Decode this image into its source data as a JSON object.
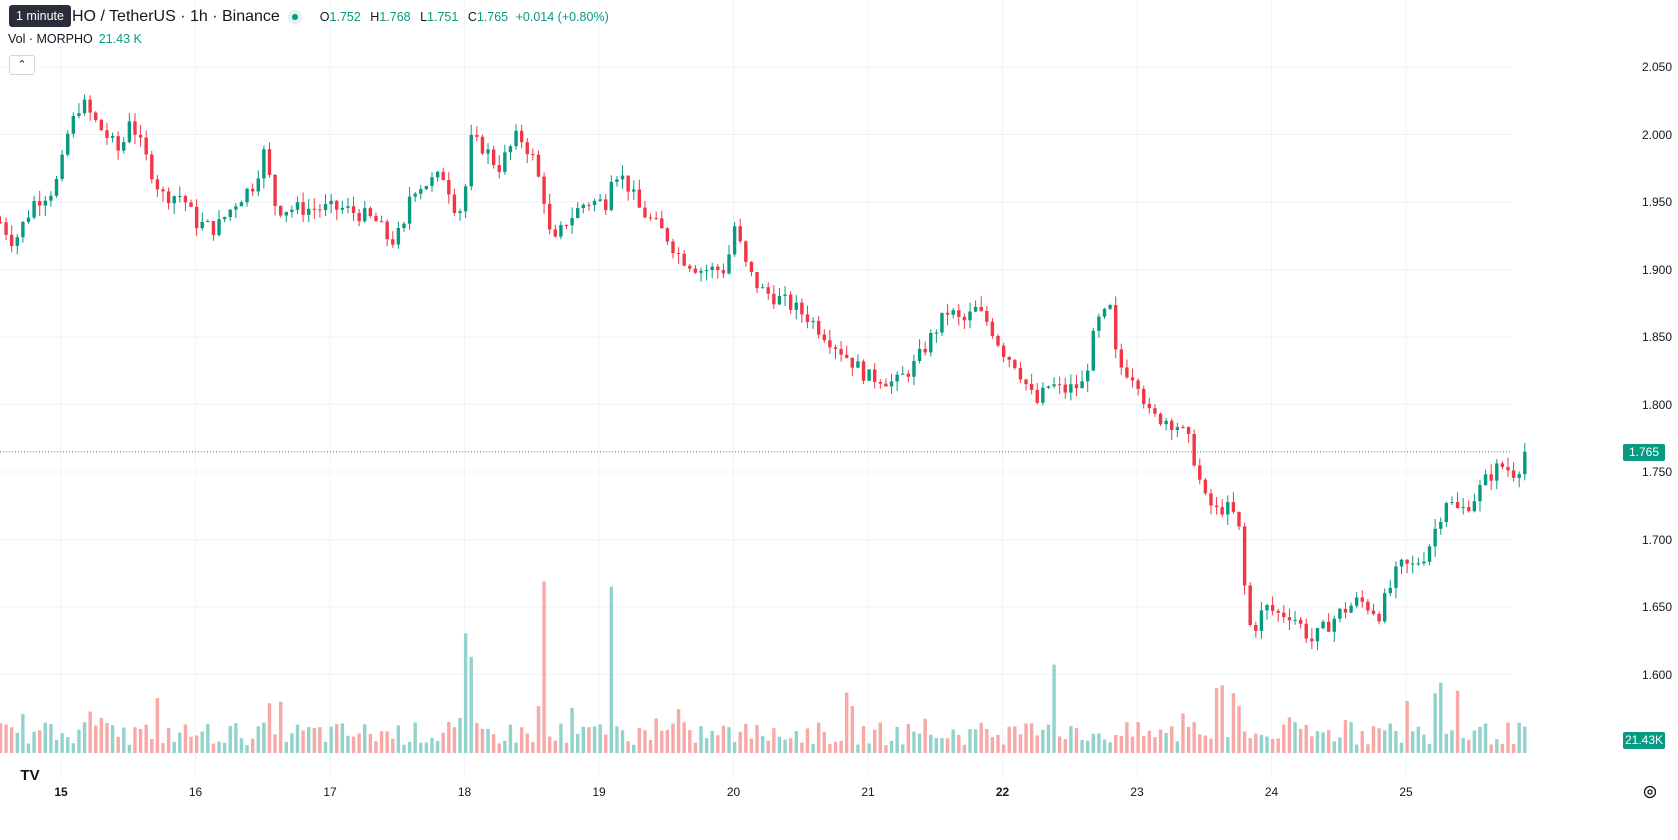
{
  "header": {
    "tooltip": "1 minute",
    "title": "HO / TetherUS · 1h · Binance",
    "ohlc": {
      "o_label": "O",
      "o": "1.752",
      "h_label": "H",
      "h": "1.768",
      "l_label": "L",
      "l": "1.751",
      "c_label": "C",
      "c": "1.765",
      "change": "+0.014 (+0.80%)"
    },
    "volume_label": "Vol · MORPHO",
    "volume_value": "21.43 K"
  },
  "price_axis": {
    "labels": [
      "2.050",
      "2.000",
      "1.950",
      "1.900",
      "1.850",
      "1.800",
      "1.750",
      "1.700",
      "1.650",
      "1.600"
    ],
    "last_price": "1.765",
    "last_volume": "21.43K"
  },
  "time_axis": [
    {
      "label": "15",
      "bold": true
    },
    {
      "label": "16",
      "bold": false
    },
    {
      "label": "17",
      "bold": false
    },
    {
      "label": "18",
      "bold": false
    },
    {
      "label": "19",
      "bold": false
    },
    {
      "label": "20",
      "bold": false
    },
    {
      "label": "21",
      "bold": false
    },
    {
      "label": "22",
      "bold": true
    },
    {
      "label": "23",
      "bold": false
    },
    {
      "label": "24",
      "bold": false
    },
    {
      "label": "25",
      "bold": false
    }
  ],
  "logo_text": "TV",
  "colors": {
    "up": "#089981",
    "down": "#f23645",
    "up_volume": "#92d2cc",
    "down_volume": "#f7a9a7",
    "grid": "#f0f3fa"
  },
  "chart_data": {
    "type": "candlestick",
    "symbol": "HO / TetherUS",
    "interval": "1h",
    "ylim": [
      1.57,
      2.09
    ],
    "x_labels": [
      "15",
      "16",
      "17",
      "18",
      "19",
      "20",
      "21",
      "22",
      "23",
      "24",
      "25"
    ],
    "anchors": [
      {
        "x": -0.45,
        "p": 1.935
      },
      {
        "x": -0.35,
        "p": 1.92
      },
      {
        "x": -0.2,
        "p": 1.95
      },
      {
        "x": -0.05,
        "p": 1.96
      },
      {
        "x": 0.0,
        "p": 1.975
      },
      {
        "x": 0.05,
        "p": 2.0
      },
      {
        "x": 0.15,
        "p": 2.025
      },
      {
        "x": 0.25,
        "p": 2.01
      },
      {
        "x": 0.45,
        "p": 1.985
      },
      {
        "x": 0.5,
        "p": 2.015
      },
      {
        "x": 0.6,
        "p": 1.99
      },
      {
        "x": 0.75,
        "p": 1.955
      },
      {
        "x": 0.9,
        "p": 1.955
      },
      {
        "x": 1.0,
        "p": 1.935
      },
      {
        "x": 1.15,
        "p": 1.93
      },
      {
        "x": 1.3,
        "p": 1.95
      },
      {
        "x": 1.45,
        "p": 1.965
      },
      {
        "x": 1.5,
        "p": 1.99
      },
      {
        "x": 1.6,
        "p": 1.945
      },
      {
        "x": 1.75,
        "p": 1.945
      },
      {
        "x": 1.95,
        "p": 1.945
      },
      {
        "x": 2.1,
        "p": 1.945
      },
      {
        "x": 2.25,
        "p": 1.94
      },
      {
        "x": 2.35,
        "p": 1.935
      },
      {
        "x": 2.45,
        "p": 1.92
      },
      {
        "x": 2.55,
        "p": 1.93
      },
      {
        "x": 2.6,
        "p": 1.96
      },
      {
        "x": 2.75,
        "p": 1.965
      },
      {
        "x": 2.85,
        "p": 1.97
      },
      {
        "x": 2.95,
        "p": 1.94
      },
      {
        "x": 3.0,
        "p": 1.955
      },
      {
        "x": 3.05,
        "p": 1.995
      },
      {
        "x": 3.15,
        "p": 1.99
      },
      {
        "x": 3.25,
        "p": 1.975
      },
      {
        "x": 3.4,
        "p": 2.0
      },
      {
        "x": 3.5,
        "p": 1.985
      },
      {
        "x": 3.6,
        "p": 1.95
      },
      {
        "x": 3.65,
        "p": 1.915
      },
      {
        "x": 3.75,
        "p": 1.935
      },
      {
        "x": 3.9,
        "p": 1.95
      },
      {
        "x": 4.05,
        "p": 1.95
      },
      {
        "x": 4.1,
        "p": 1.975
      },
      {
        "x": 4.2,
        "p": 1.965
      },
      {
        "x": 4.3,
        "p": 1.945
      },
      {
        "x": 4.5,
        "p": 1.925
      },
      {
        "x": 4.6,
        "p": 1.91
      },
      {
        "x": 4.75,
        "p": 1.9
      },
      {
        "x": 4.95,
        "p": 1.9
      },
      {
        "x": 5.0,
        "p": 1.935
      },
      {
        "x": 5.1,
        "p": 1.9
      },
      {
        "x": 5.2,
        "p": 1.885
      },
      {
        "x": 5.4,
        "p": 1.875
      },
      {
        "x": 5.55,
        "p": 1.865
      },
      {
        "x": 5.7,
        "p": 1.85
      },
      {
        "x": 5.8,
        "p": 1.84
      },
      {
        "x": 5.9,
        "p": 1.83
      },
      {
        "x": 6.0,
        "p": 1.82
      },
      {
        "x": 6.1,
        "p": 1.82
      },
      {
        "x": 6.2,
        "p": 1.815
      },
      {
        "x": 6.35,
        "p": 1.83
      },
      {
        "x": 6.5,
        "p": 1.855
      },
      {
        "x": 6.6,
        "p": 1.87
      },
      {
        "x": 6.7,
        "p": 1.86
      },
      {
        "x": 6.8,
        "p": 1.87
      },
      {
        "x": 6.9,
        "p": 1.86
      },
      {
        "x": 7.0,
        "p": 1.84
      },
      {
        "x": 7.1,
        "p": 1.83
      },
      {
        "x": 7.25,
        "p": 1.8
      },
      {
        "x": 7.35,
        "p": 1.815
      },
      {
        "x": 7.45,
        "p": 1.81
      },
      {
        "x": 7.6,
        "p": 1.815
      },
      {
        "x": 7.7,
        "p": 1.86
      },
      {
        "x": 7.8,
        "p": 1.87
      },
      {
        "x": 7.85,
        "p": 1.83
      },
      {
        "x": 8.0,
        "p": 1.82
      },
      {
        "x": 8.1,
        "p": 1.79
      },
      {
        "x": 8.2,
        "p": 1.79
      },
      {
        "x": 8.3,
        "p": 1.785
      },
      {
        "x": 8.4,
        "p": 1.77
      },
      {
        "x": 8.5,
        "p": 1.73
      },
      {
        "x": 8.6,
        "p": 1.72
      },
      {
        "x": 8.65,
        "p": 1.725
      },
      {
        "x": 8.75,
        "p": 1.715
      },
      {
        "x": 8.8,
        "p": 1.665
      },
      {
        "x": 8.85,
        "p": 1.63
      },
      {
        "x": 8.95,
        "p": 1.65
      },
      {
        "x": 9.05,
        "p": 1.645
      },
      {
        "x": 9.15,
        "p": 1.645
      },
      {
        "x": 9.3,
        "p": 1.625
      },
      {
        "x": 9.4,
        "p": 1.635
      },
      {
        "x": 9.5,
        "p": 1.645
      },
      {
        "x": 9.65,
        "p": 1.655
      },
      {
        "x": 9.8,
        "p": 1.645
      },
      {
        "x": 9.95,
        "p": 1.68
      },
      {
        "x": 10.05,
        "p": 1.68
      },
      {
        "x": 10.15,
        "p": 1.69
      },
      {
        "x": 10.3,
        "p": 1.73
      },
      {
        "x": 10.4,
        "p": 1.72
      },
      {
        "x": 10.5,
        "p": 1.73
      },
      {
        "x": 10.6,
        "p": 1.745
      },
      {
        "x": 10.7,
        "p": 1.755
      },
      {
        "x": 10.8,
        "p": 1.75
      },
      {
        "x": 10.85,
        "p": 1.755
      },
      {
        "x": 10.91,
        "p": 1.765
      }
    ],
    "volume_spikes": [
      {
        "x": 3.0,
        "v": 4.6
      },
      {
        "x": 3.05,
        "v": 3.7
      },
      {
        "x": 3.58,
        "v": 6.6
      },
      {
        "x": 4.08,
        "v": 6.4
      },
      {
        "x": 7.4,
        "v": 3.4
      },
      {
        "x": 8.6,
        "v": 2.5
      },
      {
        "x": 8.65,
        "v": 2.6
      },
      {
        "x": 8.7,
        "v": 2.3
      },
      {
        "x": 10.4,
        "v": 2.4
      },
      {
        "x": 10.2,
        "v": 2.3
      },
      {
        "x": 10.25,
        "v": 2.7
      },
      {
        "x": 10.0,
        "v": 2.0
      }
    ],
    "last_close": 1.765,
    "last_volume_k": 21.43
  }
}
